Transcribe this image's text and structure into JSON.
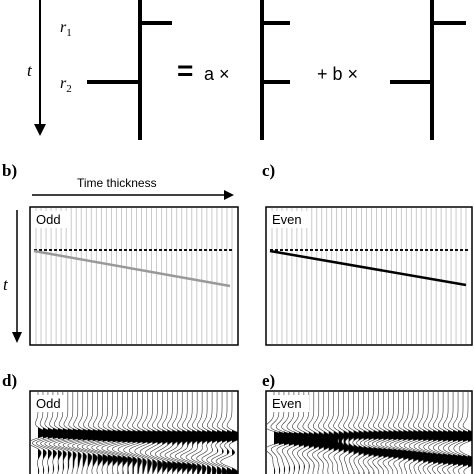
{
  "panel_a": {
    "reflector_top": "r",
    "reflector_top_sub": "1",
    "reflector_bottom": "r",
    "reflector_bottom_sub": "2",
    "time_axis": "t",
    "equals": "=",
    "term_a": "a ×",
    "term_b": "+ b ×"
  },
  "panel_b": {
    "letter": "b)",
    "axis_label": "Time thickness",
    "time_axis": "t",
    "title": "Odd"
  },
  "panel_c": {
    "letter": "c)",
    "title": "Even"
  },
  "panel_d": {
    "letter": "d)",
    "title": "Odd"
  },
  "panel_e": {
    "letter": "e)",
    "title": "Even"
  }
}
